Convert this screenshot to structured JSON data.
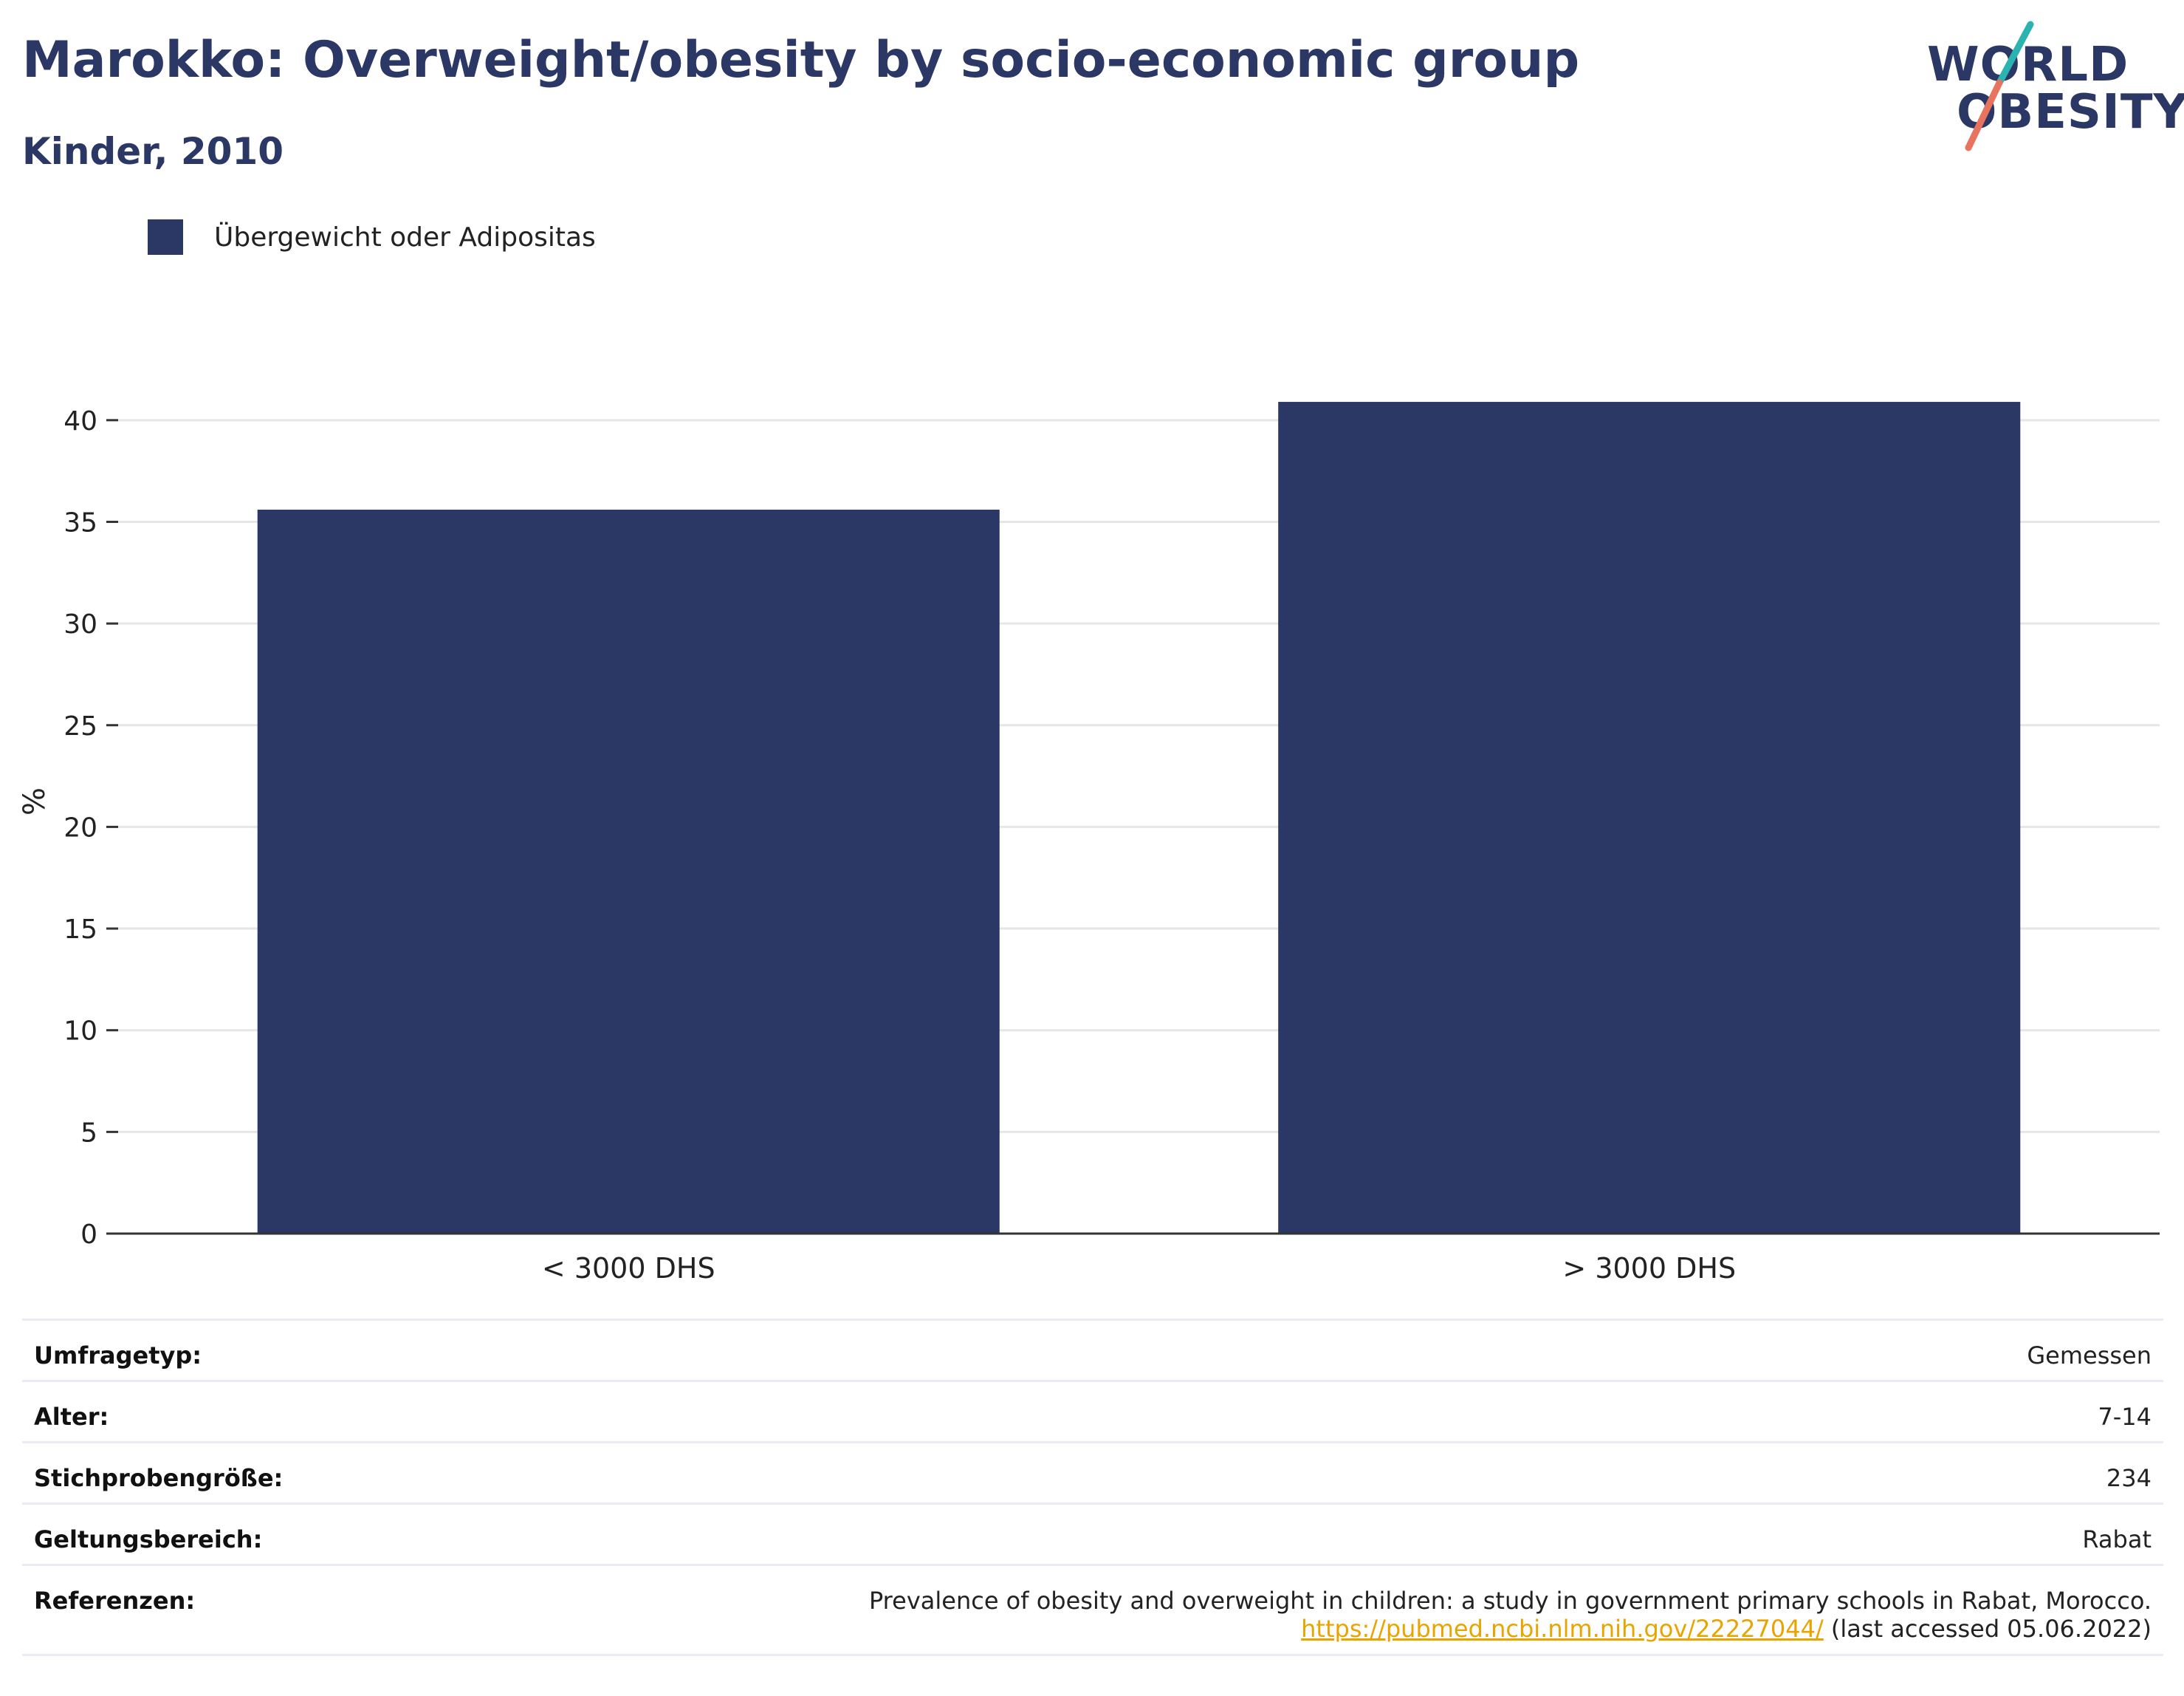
{
  "header": {
    "title": "Marokko: Overweight/obesity by socio-economic group",
    "subtitle": "Kinder, 2010"
  },
  "logo": {
    "line1": "WORLD",
    "line2": "OBESITY"
  },
  "colors": {
    "bar": "#2b3764",
    "accent_teal": "#2bb3b1",
    "accent_coral": "#e8735f"
  },
  "chart_data": {
    "type": "bar",
    "categories": [
      "< 3000 DHS",
      "> 3000 DHS"
    ],
    "series": [
      {
        "name": "Übergewicht oder Adipositas",
        "values": [
          35.6,
          40.9
        ]
      }
    ],
    "ylabel": "%",
    "ylim": [
      0,
      42.5
    ],
    "yticks": [
      0,
      5,
      10,
      15,
      20,
      25,
      30,
      35,
      40
    ],
    "grid": true,
    "legend_position": "top-left"
  },
  "meta": {
    "survey_type": {
      "label": "Umfragetyp:",
      "value": "Gemessen"
    },
    "age": {
      "label": "Alter:",
      "value": "7-14"
    },
    "sample_size": {
      "label": "Stichprobengröße:",
      "value": "234"
    },
    "scope": {
      "label": "Geltungsbereich:",
      "value": "Rabat"
    },
    "references": {
      "label": "Referenzen:",
      "title": "Prevalence of obesity and overweight in children: a study in government primary schools in Rabat, Morocco.",
      "url": "https://pubmed.ncbi.nlm.nih.gov/22227044/",
      "accessed": " (last accessed 05.06.2022)"
    }
  }
}
